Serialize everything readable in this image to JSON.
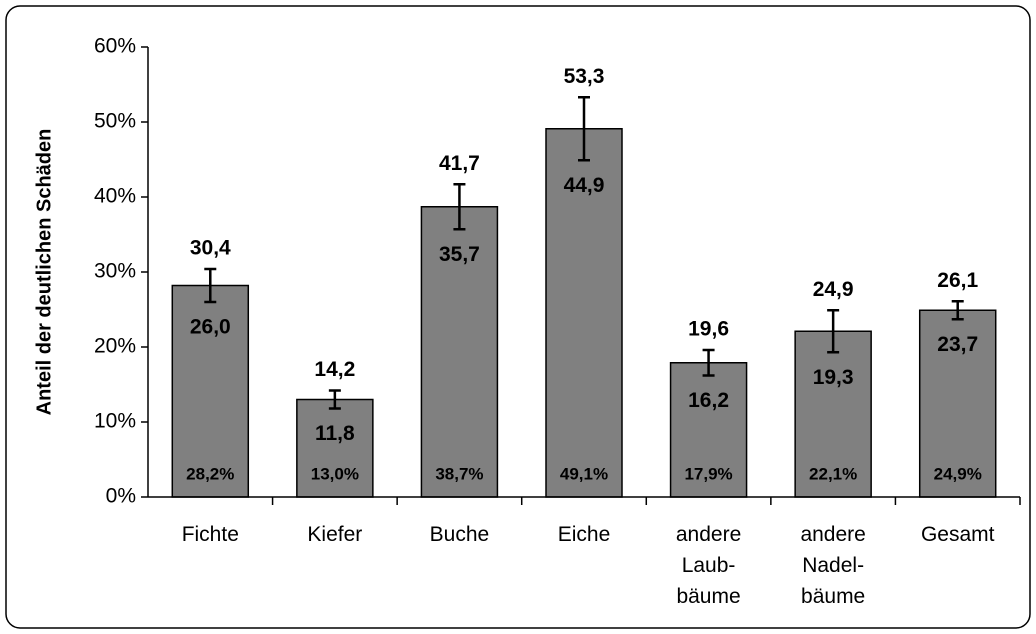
{
  "chart_data": {
    "type": "bar",
    "y_label": "Anteil der deutlichen Schäden",
    "categories": [
      "Fichte",
      "Kiefer",
      "Buche",
      "Eiche",
      "andere\nLaub-\nbäume",
      "andere\nNadel-\nbäume",
      "Gesamt"
    ],
    "values": [
      28.2,
      13.0,
      38.7,
      49.1,
      17.9,
      22.1,
      24.9
    ],
    "value_labels": [
      "28,2%",
      "13,0%",
      "38,7%",
      "49,1%",
      "17,9%",
      "22,1%",
      "24,9%"
    ],
    "upper": [
      30.4,
      14.2,
      41.7,
      53.3,
      19.6,
      24.9,
      26.1
    ],
    "upper_labels": [
      "30,4",
      "14,2",
      "41,7",
      "53,3",
      "19,6",
      "24,9",
      "26,1"
    ],
    "lower": [
      26.0,
      11.8,
      35.7,
      44.9,
      16.2,
      19.3,
      23.7
    ],
    "lower_labels": [
      "26,0",
      "11,8",
      "35,7",
      "44,9",
      "16,2",
      "19,3",
      "23,7"
    ],
    "color": "#808080",
    "ylim": [
      0,
      60
    ],
    "yticks": [
      {
        "value": 0,
        "label": "0%"
      },
      {
        "value": 10,
        "label": "10%"
      },
      {
        "value": 20,
        "label": "20%"
      },
      {
        "value": 30,
        "label": "30%"
      },
      {
        "value": 40,
        "label": "40%"
      },
      {
        "value": 50,
        "label": "50%"
      },
      {
        "value": 60,
        "label": "60%"
      }
    ]
  }
}
